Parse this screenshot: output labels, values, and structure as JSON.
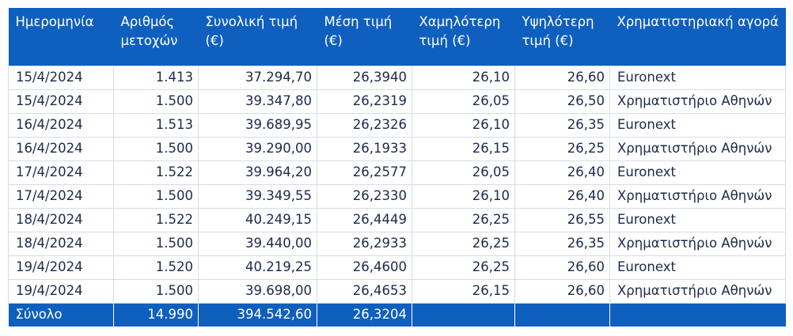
{
  "table": {
    "headers": [
      "Ημερομηνία",
      "Αριθμός μετοχών",
      "Συνολική τιμή  (€)",
      "Μέση τιμή (€)",
      "Χαμηλότερη τιμή (€)",
      "Υψηλότερη τιμή (€)",
      "Χρηματιστηριακή αγορά"
    ],
    "rows": [
      [
        "15/4/2024",
        "1.413",
        "37.294,70",
        "26,3940",
        "26,10",
        "26,60",
        "Euronext"
      ],
      [
        "15/4/2024",
        "1.500",
        "39.347,80",
        "26,2319",
        "26,05",
        "26,50",
        "Χρηματιστήριο Αθηνών"
      ],
      [
        "16/4/2024",
        "1.513",
        "39.689,95",
        "26,2326",
        "26,10",
        "26,35",
        "Euronext"
      ],
      [
        "16/4/2024",
        "1.500",
        "39.290,00",
        "26,1933",
        "26,15",
        "26,25",
        "Χρηματιστήριο Αθηνών"
      ],
      [
        "17/4/2024",
        "1.522",
        "39.964,20",
        "26,2577",
        "26,05",
        "26,40",
        "Euronext"
      ],
      [
        "17/4/2024",
        "1.500",
        "39.349,55",
        "26,2330",
        "26,10",
        "26,40",
        "Χρηματιστήριο Αθηνών"
      ],
      [
        "18/4/2024",
        "1.522",
        "40.249,15",
        "26,4449",
        "26,25",
        "26,55",
        "Euronext"
      ],
      [
        "18/4/2024",
        "1.500",
        "39.440,00",
        "26,2933",
        "26,25",
        "26,35",
        "Χρηματιστήριο Αθηνών"
      ],
      [
        "19/4/2024",
        "1.520",
        "40.219,25",
        "26,4600",
        "26,25",
        "26,60",
        "Euronext"
      ],
      [
        "19/4/2024",
        "1.500",
        "39.698,00",
        "26,4653",
        "26,15",
        "26,60",
        "Χρηματιστήριο Αθηνών"
      ]
    ],
    "total": [
      "Σύνολο",
      "14.990",
      "394.542,60",
      "26,3204",
      "",
      "",
      ""
    ]
  },
  "colors": {
    "header_bg": "#0f5fbf",
    "header_text": "#ffffff",
    "body_text": "#1c2a4a",
    "grid_line": "#d6dde8"
  }
}
